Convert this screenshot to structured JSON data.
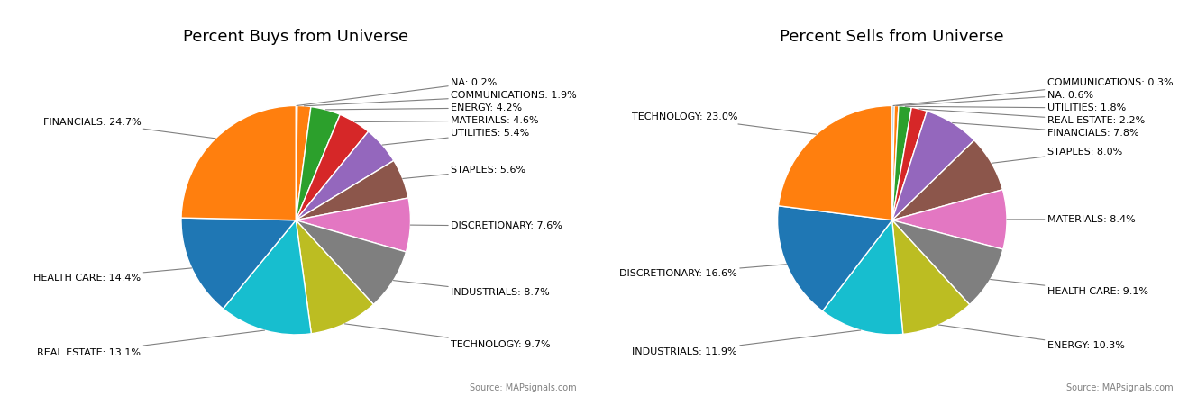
{
  "chart_data": [
    {
      "type": "pie",
      "title": "Percent Buys from Universe",
      "categories": [
        "NA",
        "COMMUNICATIONS",
        "ENERGY",
        "MATERIALS",
        "UTILITIES",
        "STAPLES",
        "DISCRETIONARY",
        "INDUSTRIALS",
        "TECHNOLOGY",
        "REAL ESTATE",
        "HEALTH CARE",
        "FINANCIALS"
      ],
      "values": [
        0.2,
        1.9,
        4.2,
        4.6,
        5.4,
        5.6,
        7.6,
        8.7,
        9.7,
        13.1,
        14.4,
        24.7
      ],
      "value_labels": [
        "NA: 0.2%",
        "COMMUNICATIONS: 1.9%",
        "ENERGY: 4.2%",
        "MATERIALS: 4.6%",
        "UTILITIES: 5.4%",
        "STAPLES: 5.6%",
        "DISCRETIONARY: 7.6%",
        "INDUSTRIALS: 8.7%",
        "TECHNOLOGY: 9.7%",
        "REAL ESTATE: 13.1%",
        "HEALTH CARE: 14.4%",
        "FINANCIALS: 24.7%"
      ],
      "data_labels": true,
      "annotations": [
        "Source: MAPsignals.com"
      ]
    },
    {
      "type": "pie",
      "title": "Percent Sells from Universe",
      "categories": [
        "COMMUNICATIONS",
        "NA",
        "UTILITIES",
        "REAL ESTATE",
        "FINANCIALS",
        "STAPLES",
        "MATERIALS",
        "HEALTH CARE",
        "ENERGY",
        "INDUSTRIALS",
        "DISCRETIONARY",
        "TECHNOLOGY"
      ],
      "values": [
        0.3,
        0.6,
        1.8,
        2.2,
        7.8,
        8.0,
        8.4,
        9.1,
        10.3,
        11.9,
        16.6,
        23.0
      ],
      "value_labels": [
        "COMMUNICATIONS: 0.3%",
        "NA: 0.6%",
        "UTILITIES: 1.8%",
        "REAL ESTATE: 2.2%",
        "FINANCIALS: 7.8%",
        "STAPLES: 8.0%",
        "MATERIALS: 8.4%",
        "HEALTH CARE: 9.1%",
        "ENERGY: 10.3%",
        "INDUSTRIALS: 11.9%",
        "DISCRETIONARY: 16.6%",
        "TECHNOLOGY: 23.0%"
      ],
      "data_labels": true,
      "annotations": [
        "Source: MAPsignals.com"
      ]
    }
  ]
}
